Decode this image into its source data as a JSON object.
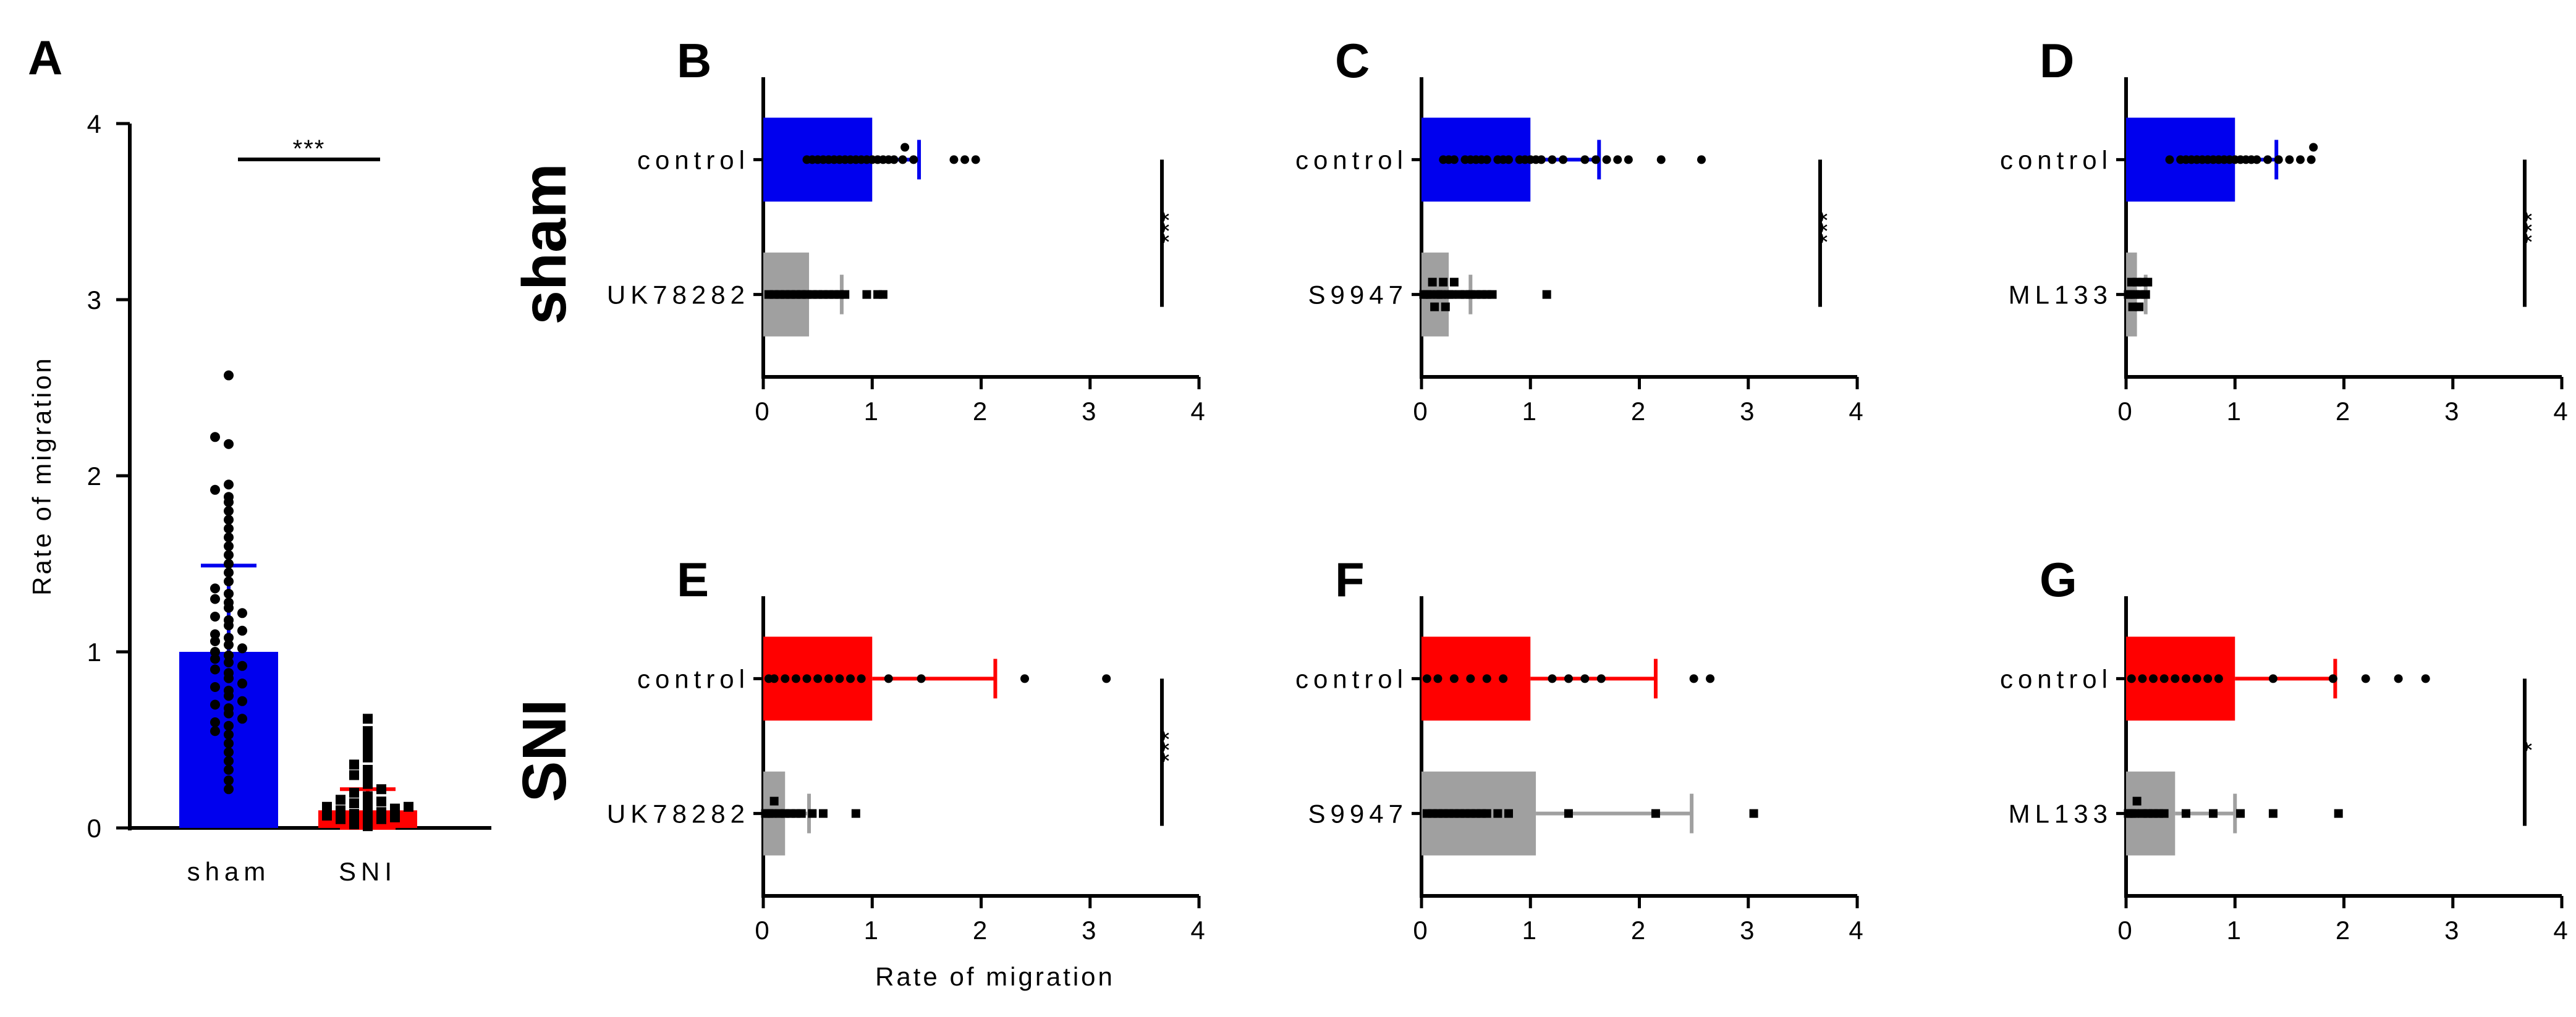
{
  "row_labels": [
    "sham",
    "SNI"
  ],
  "colors": {
    "blue": "#0000ee",
    "red": "#ff0000",
    "gray": "#a0a0a0",
    "black": "#000000"
  },
  "chart_data": [
    {
      "panel": "A",
      "type": "bar",
      "orientation": "vertical",
      "ylabel": "Rate of migration",
      "ylim": [
        0,
        4
      ],
      "yticks": [
        0,
        1,
        2,
        3,
        4
      ],
      "categories": [
        "sham",
        "SNI"
      ],
      "series": [
        {
          "category": "sham",
          "color": "#0000ee",
          "mean": 1.0,
          "err": 0.49,
          "points": [
            0.22,
            0.27,
            0.33,
            0.38,
            0.43,
            0.48,
            0.53,
            0.55,
            0.58,
            0.6,
            0.62,
            0.65,
            0.68,
            0.7,
            0.72,
            0.75,
            0.78,
            0.8,
            0.82,
            0.85,
            0.88,
            0.9,
            0.92,
            0.94,
            0.96,
            0.98,
            1.0,
            1.02,
            1.04,
            1.06,
            1.08,
            1.1,
            1.12,
            1.15,
            1.18,
            1.2,
            1.22,
            1.25,
            1.28,
            1.3,
            1.33,
            1.36,
            1.4,
            1.45,
            1.5,
            1.55,
            1.6,
            1.65,
            1.7,
            1.75,
            1.8,
            1.85,
            1.88,
            1.92,
            1.95,
            2.18,
            2.22,
            2.57
          ]
        },
        {
          "category": "SNI",
          "color": "#ff0000",
          "mean": 0.1,
          "err": 0.12,
          "points": [
            0.01,
            0.02,
            0.03,
            0.04,
            0.05,
            0.05,
            0.06,
            0.07,
            0.08,
            0.08,
            0.09,
            0.1,
            0.11,
            0.12,
            0.12,
            0.13,
            0.14,
            0.15,
            0.16,
            0.18,
            0.2,
            0.22,
            0.25,
            0.28,
            0.3,
            0.33,
            0.36,
            0.4,
            0.45,
            0.5,
            0.55,
            0.62
          ]
        }
      ],
      "annotation": "***",
      "annotation_between": [
        "sham",
        "SNI"
      ]
    },
    {
      "panel": "B",
      "row": "sham",
      "type": "bar",
      "orientation": "horizontal",
      "xlim": [
        0,
        4
      ],
      "xticks": [
        0,
        1,
        2,
        3,
        4
      ],
      "xlabel": "",
      "categories": [
        "control",
        "UK78282"
      ],
      "series": [
        {
          "category": "control",
          "color": "#0000ee",
          "mean": 1.0,
          "err": 0.43,
          "points": [
            0.4,
            0.45,
            0.5,
            0.55,
            0.6,
            0.65,
            0.7,
            0.75,
            0.8,
            0.85,
            0.9,
            0.95,
            1.0,
            1.05,
            1.1,
            1.15,
            1.2,
            1.28,
            1.3,
            1.38,
            1.75,
            1.85,
            1.95
          ]
        },
        {
          "category": "UK78282",
          "color": "#a0a0a0",
          "mean": 0.42,
          "err": 0.3,
          "points": [
            0.05,
            0.1,
            0.15,
            0.2,
            0.25,
            0.3,
            0.35,
            0.4,
            0.45,
            0.5,
            0.55,
            0.6,
            0.65,
            0.7,
            0.75,
            0.95,
            1.05,
            1.1
          ]
        }
      ],
      "annotation": "***"
    },
    {
      "panel": "C",
      "row": "sham",
      "type": "bar",
      "orientation": "horizontal",
      "xlim": [
        0,
        4
      ],
      "xticks": [
        0,
        1,
        2,
        3,
        4
      ],
      "xlabel": "",
      "categories": [
        "control",
        "S9947"
      ],
      "series": [
        {
          "category": "control",
          "color": "#0000ee",
          "mean": 1.0,
          "err": 0.63,
          "points": [
            0.2,
            0.25,
            0.3,
            0.4,
            0.45,
            0.5,
            0.55,
            0.6,
            0.7,
            0.75,
            0.8,
            0.9,
            0.95,
            1.0,
            1.05,
            1.1,
            1.2,
            1.3,
            1.5,
            1.6,
            1.7,
            1.8,
            1.9,
            2.2,
            2.57
          ]
        },
        {
          "category": "S9947",
          "color": "#a0a0a0",
          "mean": 0.25,
          "err": 0.2,
          "points": [
            0.02,
            0.05,
            0.08,
            0.1,
            0.12,
            0.15,
            0.18,
            0.2,
            0.22,
            0.25,
            0.28,
            0.3,
            0.35,
            0.4,
            0.45,
            0.5,
            0.55,
            0.6,
            0.65,
            1.15
          ]
        }
      ],
      "annotation": "***"
    },
    {
      "panel": "D",
      "row": "sham",
      "type": "bar",
      "orientation": "horizontal",
      "xlim": [
        0,
        4
      ],
      "xticks": [
        0,
        1,
        2,
        3,
        4
      ],
      "xlabel": "",
      "categories": [
        "control",
        "ML133"
      ],
      "series": [
        {
          "category": "control",
          "color": "#0000ee",
          "mean": 1.0,
          "err": 0.38,
          "points": [
            0.4,
            0.5,
            0.55,
            0.6,
            0.65,
            0.7,
            0.75,
            0.8,
            0.85,
            0.9,
            0.95,
            1.0,
            1.05,
            1.1,
            1.15,
            1.2,
            1.3,
            1.4,
            1.5,
            1.6,
            1.7,
            1.72
          ]
        },
        {
          "category": "ML133",
          "color": "#a0a0a0",
          "mean": 0.1,
          "err": 0.08,
          "points": [
            0.02,
            0.04,
            0.05,
            0.06,
            0.08,
            0.1,
            0.12,
            0.13,
            0.15,
            0.18,
            0.2
          ]
        }
      ],
      "annotation": "***"
    },
    {
      "panel": "E",
      "row": "SNI",
      "type": "bar",
      "orientation": "horizontal",
      "xlim": [
        0,
        4
      ],
      "xticks": [
        0,
        1,
        2,
        3,
        4
      ],
      "xlabel": "Rate of migration",
      "categories": [
        "control",
        "UK78282"
      ],
      "series": [
        {
          "category": "control",
          "color": "#ff0000",
          "mean": 1.0,
          "err": 1.13,
          "points": [
            0.05,
            0.1,
            0.2,
            0.3,
            0.4,
            0.5,
            0.6,
            0.7,
            0.8,
            0.9,
            1.15,
            1.45,
            2.4,
            3.15
          ]
        },
        {
          "category": "UK78282",
          "color": "#a0a0a0",
          "mean": 0.2,
          "err": 0.22,
          "points": [
            0.02,
            0.05,
            0.08,
            0.1,
            0.15,
            0.2,
            0.25,
            0.3,
            0.35,
            0.45,
            0.55,
            0.85
          ]
        }
      ],
      "annotation": "***"
    },
    {
      "panel": "F",
      "row": "SNI",
      "type": "bar",
      "orientation": "horizontal",
      "xlim": [
        0,
        4
      ],
      "xticks": [
        0,
        1,
        2,
        3,
        4
      ],
      "xlabel": "",
      "categories": [
        "control",
        "S9947"
      ],
      "series": [
        {
          "category": "control",
          "color": "#ff0000",
          "mean": 1.0,
          "err": 1.15,
          "points": [
            0.05,
            0.15,
            0.3,
            0.45,
            0.6,
            0.75,
            1.2,
            1.35,
            1.5,
            1.65,
            2.5,
            2.65
          ]
        },
        {
          "category": "S9947",
          "color": "#a0a0a0",
          "mean": 1.05,
          "err": 1.43,
          "points": [
            0.05,
            0.1,
            0.15,
            0.2,
            0.25,
            0.3,
            0.35,
            0.4,
            0.45,
            0.5,
            0.55,
            0.6,
            0.7,
            0.8,
            1.35,
            2.15,
            3.05
          ]
        }
      ],
      "annotation": ""
    },
    {
      "panel": "G",
      "row": "SNI",
      "type": "bar",
      "orientation": "horizontal",
      "xlim": [
        0,
        4
      ],
      "xticks": [
        0,
        1,
        2,
        3,
        4
      ],
      "xlabel": "",
      "categories": [
        "control",
        "ML133"
      ],
      "series": [
        {
          "category": "control",
          "color": "#ff0000",
          "mean": 1.0,
          "err": 0.92,
          "points": [
            0.05,
            0.15,
            0.25,
            0.35,
            0.45,
            0.55,
            0.65,
            0.75,
            0.85,
            1.35,
            1.9,
            2.2,
            2.5,
            2.75
          ]
        },
        {
          "category": "ML133",
          "color": "#a0a0a0",
          "mean": 0.45,
          "err": 0.55,
          "points": [
            0.02,
            0.05,
            0.08,
            0.1,
            0.15,
            0.2,
            0.25,
            0.3,
            0.35,
            0.55,
            0.8,
            1.05,
            1.35,
            1.95
          ]
        }
      ],
      "annotation": "*"
    }
  ]
}
